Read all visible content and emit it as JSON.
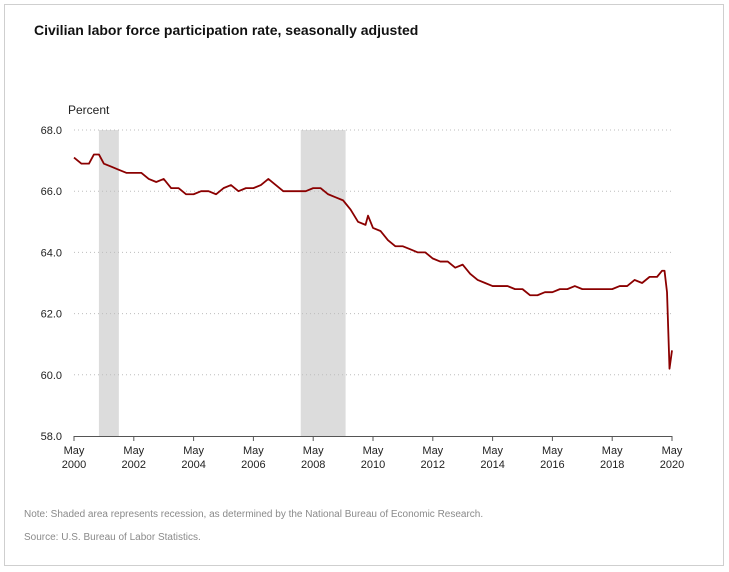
{
  "chart_data": {
    "type": "line",
    "title": "Civilian labor force participation rate, seasonally adjusted",
    "ylabel": "Percent",
    "xlabel": "",
    "ylim": [
      58.0,
      68.0
    ],
    "yticks": [
      "58.0",
      "60.0",
      "62.0",
      "64.0",
      "66.0",
      "68.0"
    ],
    "xlim": [
      "2000-05",
      "2020-05"
    ],
    "xticks": [
      {
        "month": "May",
        "year": "2000"
      },
      {
        "month": "May",
        "year": "2002"
      },
      {
        "month": "May",
        "year": "2004"
      },
      {
        "month": "May",
        "year": "2006"
      },
      {
        "month": "May",
        "year": "2008"
      },
      {
        "month": "May",
        "year": "2010"
      },
      {
        "month": "May",
        "year": "2012"
      },
      {
        "month": "May",
        "year": "2014"
      },
      {
        "month": "May",
        "year": "2016"
      },
      {
        "month": "May",
        "year": "2018"
      },
      {
        "month": "May",
        "year": "2020"
      }
    ],
    "grid": "horizontal-dotted",
    "recessions": [
      {
        "start": "2001-03",
        "end": "2001-11"
      },
      {
        "start": "2007-12",
        "end": "2009-06"
      }
    ],
    "series": [
      {
        "color": "#8b0000",
        "points": [
          [
            "2000-05",
            67.1
          ],
          [
            "2000-08",
            66.9
          ],
          [
            "2000-11",
            66.9
          ],
          [
            "2001-01",
            67.2
          ],
          [
            "2001-03",
            67.2
          ],
          [
            "2001-05",
            66.9
          ],
          [
            "2001-08",
            66.8
          ],
          [
            "2001-11",
            66.7
          ],
          [
            "2002-02",
            66.6
          ],
          [
            "2002-05",
            66.6
          ],
          [
            "2002-08",
            66.6
          ],
          [
            "2002-11",
            66.4
          ],
          [
            "2003-02",
            66.3
          ],
          [
            "2003-05",
            66.4
          ],
          [
            "2003-08",
            66.1
          ],
          [
            "2003-11",
            66.1
          ],
          [
            "2004-02",
            65.9
          ],
          [
            "2004-05",
            65.9
          ],
          [
            "2004-08",
            66.0
          ],
          [
            "2004-11",
            66.0
          ],
          [
            "2005-02",
            65.9
          ],
          [
            "2005-05",
            66.1
          ],
          [
            "2005-08",
            66.2
          ],
          [
            "2005-11",
            66.0
          ],
          [
            "2006-02",
            66.1
          ],
          [
            "2006-05",
            66.1
          ],
          [
            "2006-08",
            66.2
          ],
          [
            "2006-11",
            66.4
          ],
          [
            "2007-02",
            66.2
          ],
          [
            "2007-05",
            66.0
          ],
          [
            "2007-08",
            66.0
          ],
          [
            "2007-11",
            66.0
          ],
          [
            "2008-02",
            66.0
          ],
          [
            "2008-05",
            66.1
          ],
          [
            "2008-08",
            66.1
          ],
          [
            "2008-11",
            65.9
          ],
          [
            "2009-02",
            65.8
          ],
          [
            "2009-05",
            65.7
          ],
          [
            "2009-08",
            65.4
          ],
          [
            "2009-11",
            65.0
          ],
          [
            "2010-02",
            64.9
          ],
          [
            "2010-03",
            65.2
          ],
          [
            "2010-05",
            64.8
          ],
          [
            "2010-08",
            64.7
          ],
          [
            "2010-11",
            64.4
          ],
          [
            "2011-02",
            64.2
          ],
          [
            "2011-05",
            64.2
          ],
          [
            "2011-08",
            64.1
          ],
          [
            "2011-11",
            64.0
          ],
          [
            "2012-02",
            64.0
          ],
          [
            "2012-05",
            63.8
          ],
          [
            "2012-08",
            63.7
          ],
          [
            "2012-11",
            63.7
          ],
          [
            "2013-02",
            63.5
          ],
          [
            "2013-05",
            63.6
          ],
          [
            "2013-08",
            63.3
          ],
          [
            "2013-11",
            63.1
          ],
          [
            "2014-02",
            63.0
          ],
          [
            "2014-05",
            62.9
          ],
          [
            "2014-08",
            62.9
          ],
          [
            "2014-11",
            62.9
          ],
          [
            "2015-02",
            62.8
          ],
          [
            "2015-05",
            62.8
          ],
          [
            "2015-08",
            62.6
          ],
          [
            "2015-11",
            62.6
          ],
          [
            "2016-02",
            62.7
          ],
          [
            "2016-05",
            62.7
          ],
          [
            "2016-08",
            62.8
          ],
          [
            "2016-11",
            62.8
          ],
          [
            "2017-02",
            62.9
          ],
          [
            "2017-05",
            62.8
          ],
          [
            "2017-08",
            62.8
          ],
          [
            "2017-11",
            62.8
          ],
          [
            "2018-02",
            62.8
          ],
          [
            "2018-05",
            62.8
          ],
          [
            "2018-08",
            62.9
          ],
          [
            "2018-11",
            62.9
          ],
          [
            "2019-02",
            63.1
          ],
          [
            "2019-05",
            63.0
          ],
          [
            "2019-08",
            63.2
          ],
          [
            "2019-11",
            63.2
          ],
          [
            "2020-01",
            63.4
          ],
          [
            "2020-02",
            63.4
          ],
          [
            "2020-03",
            62.7
          ],
          [
            "2020-04",
            60.2
          ],
          [
            "2020-05",
            60.8
          ]
        ]
      }
    ]
  },
  "footer": {
    "note": "Note: Shaded area represents recession, as determined by the National Bureau of Economic Research.",
    "source": "Source: U.S. Bureau of Labor Statistics."
  }
}
